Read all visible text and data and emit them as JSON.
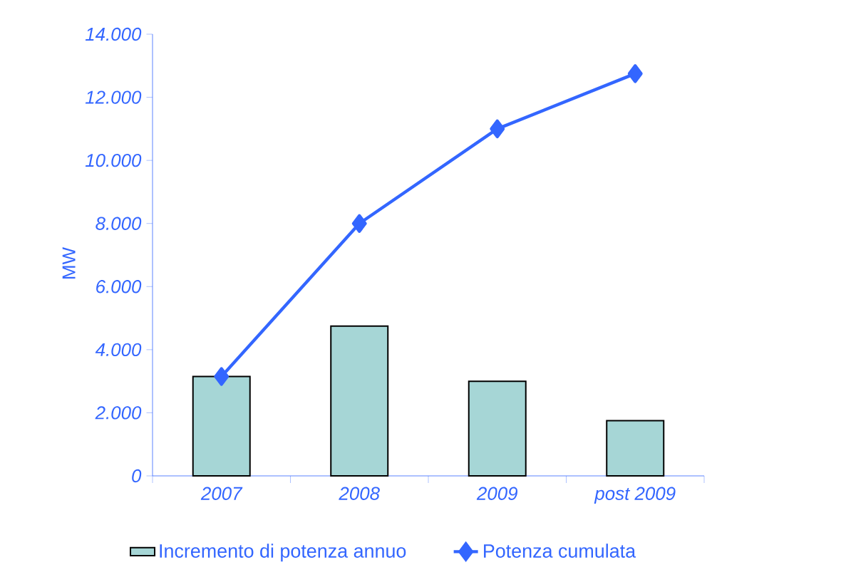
{
  "chart_data": {
    "type": "bar",
    "ylabel": "MW",
    "categories": [
      "2007",
      "2008",
      "2009",
      "post 2009"
    ],
    "series": [
      {
        "name": "Incremento di potenza annuo",
        "color": "#a6d6d6",
        "values": [
          3150,
          4750,
          3000,
          1750
        ]
      },
      {
        "name": "Potenza cumulata",
        "type": "line",
        "color": "#3366ff",
        "values": [
          3150,
          8000,
          11000,
          12750
        ]
      }
    ],
    "marker": "diamond",
    "ylim": [
      0,
      14000
    ],
    "yticks": [
      0,
      {
        "value": 2000,
        "label": "2.000"
      },
      {
        "value": 4000,
        "label": "4.000"
      },
      {
        "value": 6000,
        "label": "6.000"
      },
      {
        "value": 8000,
        "label": "8.000"
      },
      {
        "value": 10000,
        "label": "10.000"
      },
      {
        "value": 12000,
        "label": "12.000"
      },
      {
        "value": 14000,
        "label": "14.000"
      }
    ],
    "legend": "bottom",
    "grid": false
  }
}
